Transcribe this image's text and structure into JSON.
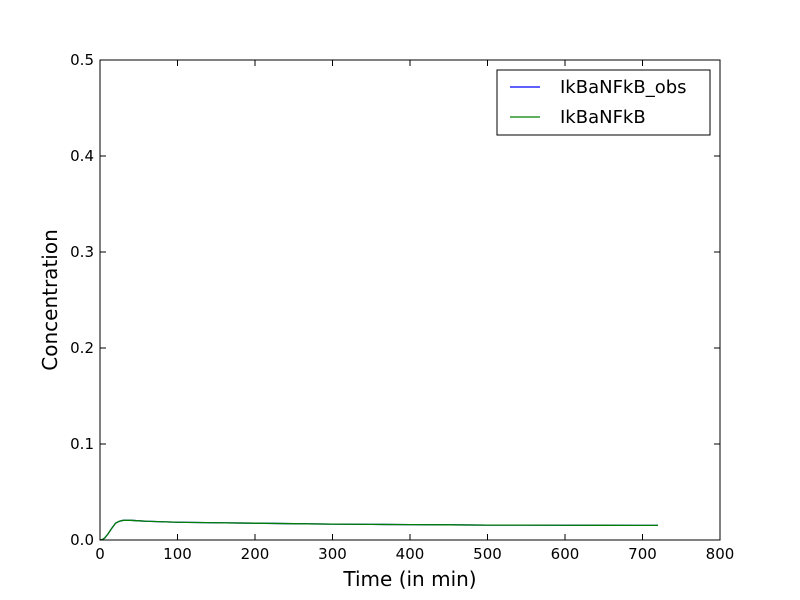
{
  "chart_data": {
    "type": "line",
    "title": "",
    "xlabel": "Time (in min)",
    "ylabel": "Concentration",
    "xlim": [
      0,
      800
    ],
    "ylim": [
      0,
      0.5
    ],
    "xticks": [
      "0",
      "100",
      "200",
      "300",
      "400",
      "500",
      "600",
      "700",
      "800"
    ],
    "yticks": [
      "0.0",
      "0.1",
      "0.2",
      "0.3",
      "0.4",
      "0.5"
    ],
    "grid": false,
    "legend": "top-right",
    "series": [
      {
        "name": "IkBaNFkB_obs",
        "color": "#0000ff",
        "x": [
          0,
          3,
          6,
          10,
          15,
          20,
          25,
          30,
          40,
          50,
          60,
          80,
          100,
          150,
          200,
          250,
          300,
          350,
          400,
          450,
          500,
          550,
          600,
          650,
          700,
          720
        ],
        "y": [
          0,
          0.0005,
          0.002,
          0.006,
          0.012,
          0.0175,
          0.0195,
          0.0205,
          0.0205,
          0.02,
          0.0195,
          0.019,
          0.0185,
          0.018,
          0.0175,
          0.017,
          0.0165,
          0.0163,
          0.016,
          0.0158,
          0.0155,
          0.0155,
          0.0154,
          0.0153,
          0.0152,
          0.0152
        ]
      },
      {
        "name": "IkBaNFkB",
        "color": "#008000",
        "x": [
          0,
          3,
          6,
          10,
          15,
          20,
          25,
          30,
          40,
          50,
          60,
          80,
          100,
          150,
          200,
          250,
          300,
          350,
          400,
          450,
          500,
          550,
          600,
          650,
          700,
          720
        ],
        "y": [
          0,
          0.0005,
          0.002,
          0.006,
          0.012,
          0.0175,
          0.0195,
          0.0205,
          0.0205,
          0.02,
          0.0195,
          0.019,
          0.0185,
          0.018,
          0.0175,
          0.017,
          0.0165,
          0.0163,
          0.016,
          0.0158,
          0.0155,
          0.0155,
          0.0154,
          0.0153,
          0.0152,
          0.0152
        ]
      }
    ]
  }
}
